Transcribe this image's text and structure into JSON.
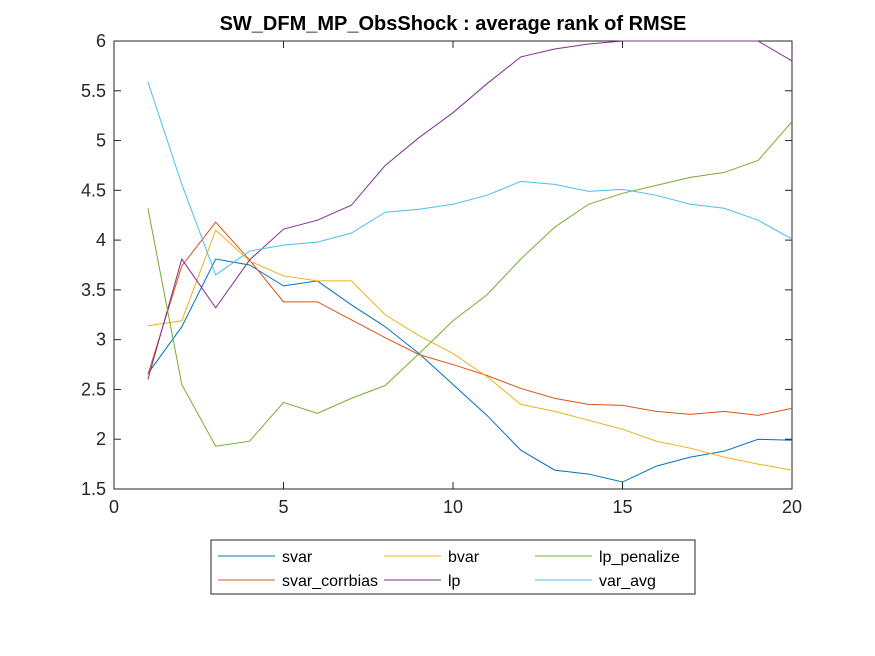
{
  "chart_data": {
    "type": "line",
    "title": "SW_DFM_MP_ObsShock : average rank of RMSE",
    "xlabel": "",
    "ylabel": "",
    "xlim": [
      0,
      20
    ],
    "ylim": [
      1.5,
      6
    ],
    "xticks": [
      0,
      5,
      10,
      15,
      20
    ],
    "yticks": [
      1.5,
      2,
      2.5,
      3,
      3.5,
      4,
      4.5,
      5,
      5.5,
      6
    ],
    "xtick_labels": [
      "0",
      "5",
      "10",
      "15",
      "20"
    ],
    "ytick_labels": [
      "1.5",
      "2",
      "2.5",
      "3",
      "3.5",
      "4",
      "4.5",
      "5",
      "5.5",
      "6"
    ],
    "grid": false,
    "legend_position": "bottom-outside",
    "x": [
      1,
      2,
      3,
      4,
      5,
      6,
      7,
      8,
      9,
      10,
      11,
      12,
      13,
      14,
      15,
      16,
      17,
      18,
      19,
      20
    ],
    "series": [
      {
        "name": "svar",
        "color": "#0072BD",
        "values": [
          2.66,
          3.13,
          3.81,
          3.75,
          3.54,
          3.59,
          3.35,
          3.13,
          2.86,
          2.55,
          2.24,
          1.89,
          1.69,
          1.65,
          1.57,
          1.73,
          1.82,
          1.88,
          2.0,
          1.99
        ]
      },
      {
        "name": "svar_corrbias",
        "color": "#D95319",
        "values": [
          2.65,
          3.74,
          4.18,
          3.8,
          3.38,
          3.38,
          3.2,
          3.02,
          2.85,
          2.75,
          2.64,
          2.51,
          2.41,
          2.35,
          2.34,
          2.28,
          2.25,
          2.28,
          2.24,
          2.31
        ]
      },
      {
        "name": "bvar",
        "color": "#EDB120",
        "values": [
          3.14,
          3.19,
          4.1,
          3.79,
          3.64,
          3.59,
          3.59,
          3.25,
          3.04,
          2.86,
          2.63,
          2.35,
          2.28,
          2.19,
          2.1,
          1.98,
          1.91,
          1.82,
          1.75,
          1.69
        ]
      },
      {
        "name": "lp",
        "color": "#7E2F8E",
        "values": [
          2.6,
          3.81,
          3.32,
          3.8,
          4.11,
          4.2,
          4.35,
          4.75,
          5.03,
          5.28,
          5.57,
          5.84,
          5.92,
          5.97,
          6.0,
          6.0,
          6.0,
          6.0,
          6.0,
          5.8
        ]
      },
      {
        "name": "lp_penalize",
        "color": "#77AC30",
        "values": [
          4.32,
          2.55,
          1.93,
          1.98,
          2.37,
          2.26,
          2.41,
          2.54,
          2.86,
          3.19,
          3.45,
          3.81,
          4.13,
          4.36,
          4.47,
          4.55,
          4.63,
          4.68,
          4.8,
          5.19
        ]
      },
      {
        "name": "var_avg",
        "color": "#4DBEEE",
        "values": [
          5.59,
          4.56,
          3.65,
          3.89,
          3.95,
          3.98,
          4.07,
          4.28,
          4.31,
          4.36,
          4.45,
          4.59,
          4.56,
          4.49,
          4.51,
          4.45,
          4.36,
          4.32,
          4.2,
          4.01
        ]
      }
    ],
    "legend_order": [
      "svar",
      "bvar",
      "lp_penalize",
      "svar_corrbias",
      "lp",
      "var_avg"
    ]
  }
}
